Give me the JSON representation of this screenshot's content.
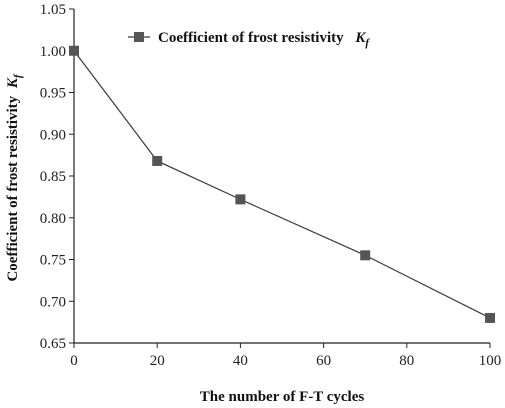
{
  "chart_data": {
    "type": "line",
    "x": [
      0,
      20,
      40,
      70,
      100
    ],
    "series": [
      {
        "name": "Coefficient of frost resistivity",
        "name_symbol": "K",
        "name_symbol_sub": "f",
        "values": [
          1.0,
          0.868,
          0.822,
          0.755,
          0.68
        ]
      }
    ],
    "xlabel": "The number of F-T cycles",
    "ylabel": "Coefficient of frost resistivity",
    "ylabel_symbol": "K",
    "ylabel_symbol_sub": "f",
    "xlim": [
      0,
      100
    ],
    "ylim": [
      0.65,
      1.05
    ],
    "xticks": [
      "0",
      "20",
      "40",
      "60",
      "80",
      "100"
    ],
    "yticks": [
      "0.65",
      "0.70",
      "0.75",
      "0.80",
      "0.85",
      "0.90",
      "0.95",
      "1.00",
      "1.05"
    ],
    "grid": false,
    "legend_position": "top-left",
    "marker": "square",
    "color": "#3a3a3a"
  }
}
